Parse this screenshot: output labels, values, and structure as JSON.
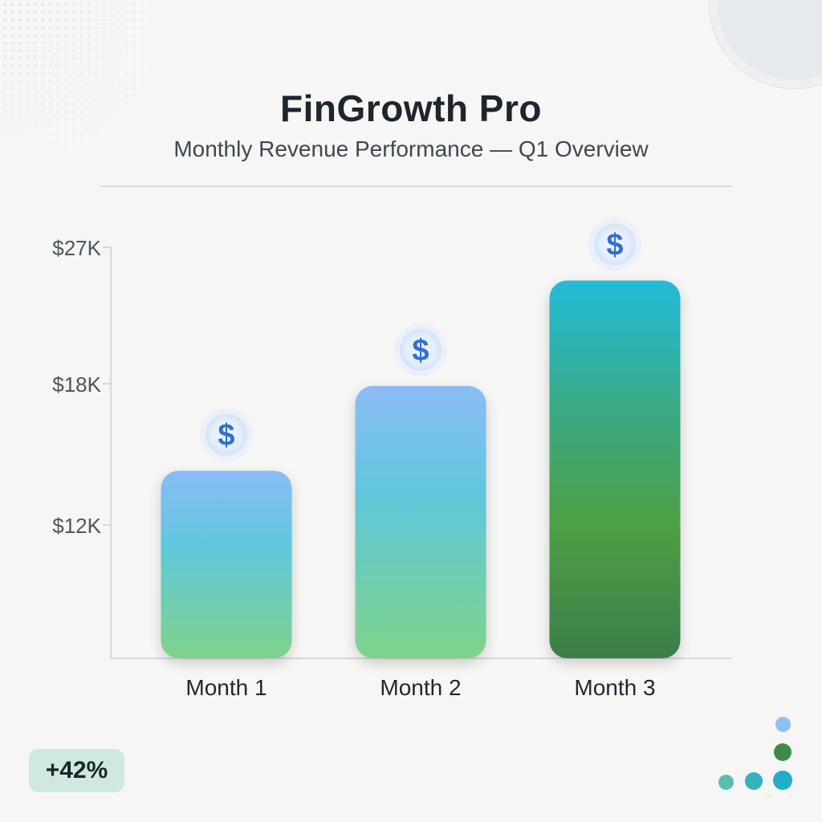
{
  "header": {
    "title": "FinGrowth Pro",
    "subtitle": "Monthly Revenue Performance — Q1 Overview"
  },
  "badge": {
    "label": "+42%"
  },
  "colors": {
    "background": "#f6f6f4",
    "bar_top_blue": "#8bbcf5",
    "bar_mid_cyan": "#5fc8dc",
    "bar_green": "#7fd38a",
    "bar3_top": "#22bcd9",
    "bar3_bottom": "#3a7d4a",
    "badge_bg": "#cfe9e0",
    "icon_blue": "#2f6fd6"
  },
  "chart_data": {
    "type": "bar",
    "categories": [
      "Month 1",
      "Month 2",
      "Month 3"
    ],
    "values": [
      14300,
      17900,
      24800
    ],
    "yticks": [
      "$27K",
      "$18K",
      "$12K"
    ],
    "icon": "dollar-icon"
  }
}
